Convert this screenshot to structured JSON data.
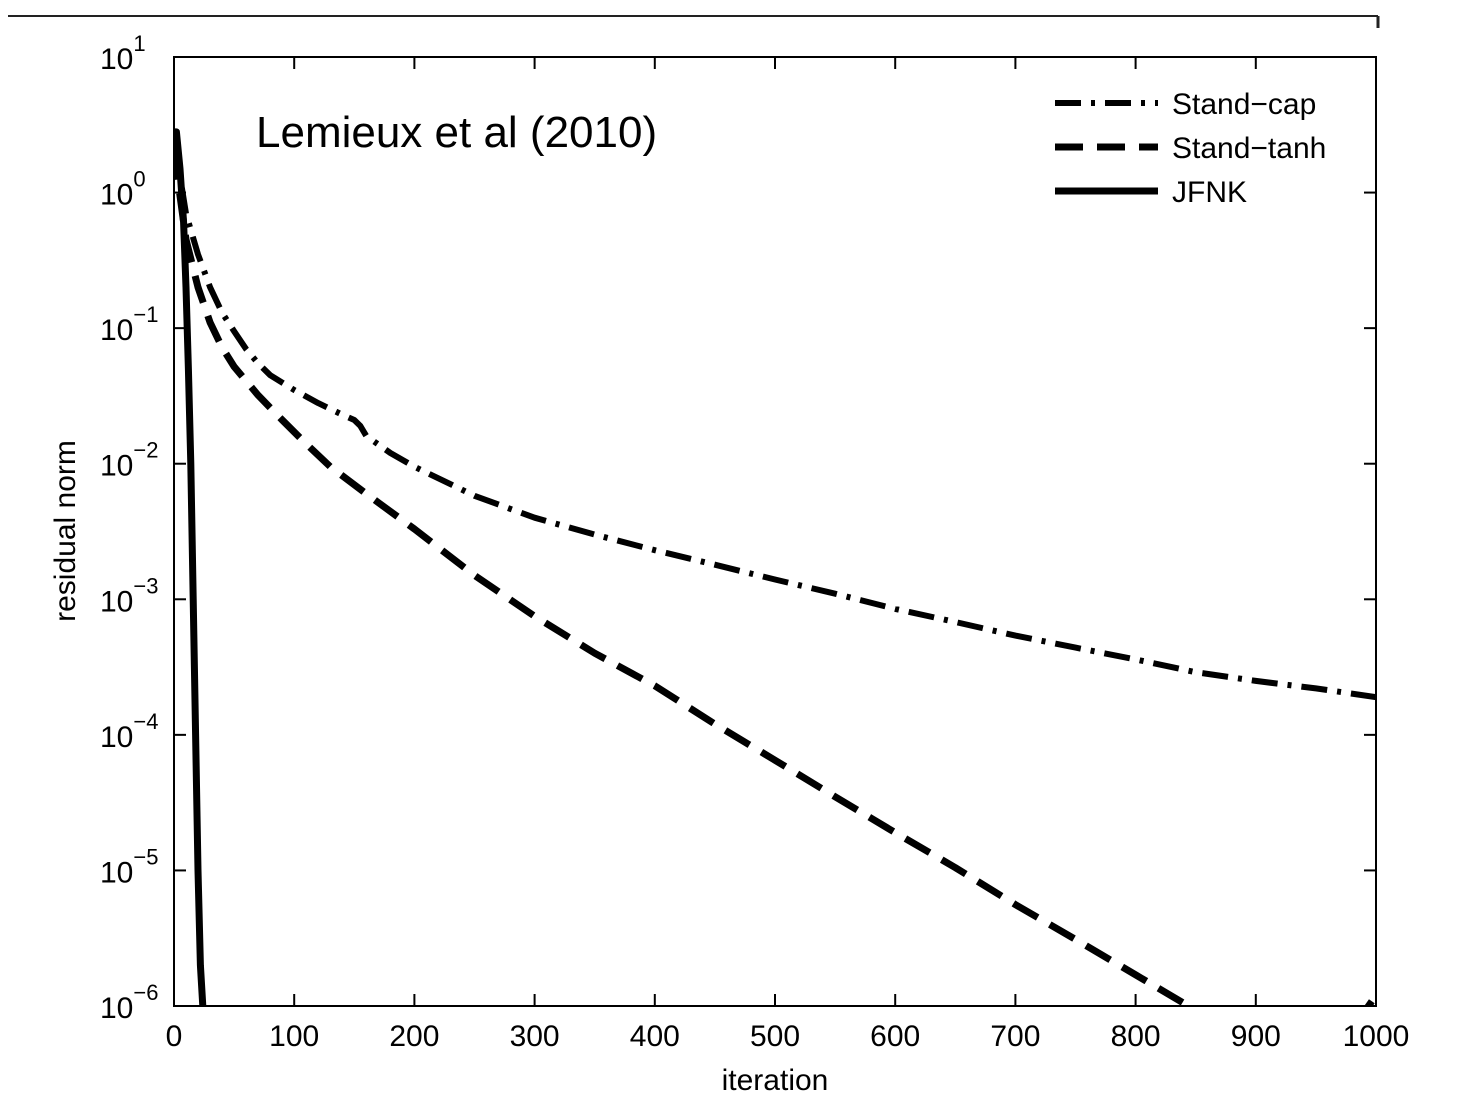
{
  "chart_data": {
    "type": "line",
    "title": "",
    "annotation": "Lemieux et al (2010)",
    "xlabel": "iteration",
    "ylabel": "residual norm",
    "xlim": [
      0,
      1000
    ],
    "ylim": [
      1e-06,
      10
    ],
    "yscale": "log",
    "x_ticks": [
      "0",
      "100",
      "200",
      "300",
      "400",
      "500",
      "600",
      "700",
      "800",
      "900",
      "1000"
    ],
    "y_ticks": [
      {
        "base": "10",
        "exp": "1"
      },
      {
        "base": "10",
        "exp": "0"
      },
      {
        "base": "10",
        "exp": "−1"
      },
      {
        "base": "10",
        "exp": "−2"
      },
      {
        "base": "10",
        "exp": "−3"
      },
      {
        "base": "10",
        "exp": "−4"
      },
      {
        "base": "10",
        "exp": "−5"
      },
      {
        "base": "10",
        "exp": "−6"
      }
    ],
    "legend_position": "top-right",
    "grid": false,
    "series": [
      {
        "name": "Stand−cap",
        "style": "dash-dot",
        "x": [
          0,
          10,
          20,
          30,
          40,
          50,
          60,
          70,
          80,
          100,
          120,
          140,
          150,
          155,
          160,
          180,
          200,
          250,
          300,
          350,
          400,
          450,
          500,
          550,
          600,
          650,
          700,
          750,
          800,
          850,
          900,
          950,
          1000
        ],
        "y": [
          2.5,
          0.7,
          0.35,
          0.2,
          0.13,
          0.095,
          0.07,
          0.055,
          0.045,
          0.035,
          0.028,
          0.023,
          0.021,
          0.019,
          0.016,
          0.012,
          0.0095,
          0.0058,
          0.004,
          0.003,
          0.0023,
          0.0018,
          0.0014,
          0.0011,
          0.00085,
          0.00068,
          0.00054,
          0.00044,
          0.00036,
          0.00029,
          0.00025,
          0.00022,
          0.00019
        ]
      },
      {
        "name": "Stand−tanh",
        "style": "dashed",
        "x": [
          0,
          10,
          20,
          30,
          40,
          50,
          70,
          90,
          110,
          130,
          160,
          200,
          250,
          300,
          350,
          400,
          450,
          500,
          550,
          600,
          650,
          700,
          750,
          800,
          850,
          900,
          950,
          1000
        ],
        "y": [
          2.0,
          0.45,
          0.2,
          0.11,
          0.072,
          0.052,
          0.032,
          0.021,
          0.014,
          0.0095,
          0.006,
          0.0033,
          0.0015,
          0.00075,
          0.0004,
          0.00023,
          0.00012,
          6.5e-05,
          3.5e-05,
          1.9e-05,
          1.05e-05,
          5.6e-06,
          3.1e-06,
          1.7e-06,
          9.3e-07,
          5.1e-07,
          2.8e-07,
          1.2e-06
        ]
      },
      {
        "name": "JFNK",
        "style": "solid",
        "x": [
          0,
          2,
          5,
          8,
          10,
          12,
          14,
          16,
          18,
          20,
          22,
          24
        ],
        "y": [
          2.8,
          2.8,
          1.5,
          0.6,
          0.2,
          0.05,
          0.01,
          0.001,
          0.0001,
          1e-05,
          2e-06,
          1e-06
        ]
      }
    ]
  }
}
